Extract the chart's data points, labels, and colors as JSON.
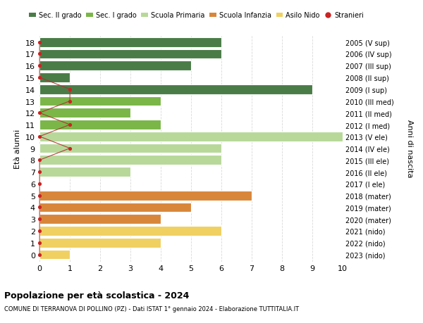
{
  "ages": [
    18,
    17,
    16,
    15,
    14,
    13,
    12,
    11,
    10,
    9,
    8,
    7,
    6,
    5,
    4,
    3,
    2,
    1,
    0
  ],
  "anni_nascita": [
    "2005 (V sup)",
    "2006 (IV sup)",
    "2007 (III sup)",
    "2008 (II sup)",
    "2009 (I sup)",
    "2010 (III med)",
    "2011 (II med)",
    "2012 (I med)",
    "2013 (V ele)",
    "2014 (IV ele)",
    "2015 (III ele)",
    "2016 (II ele)",
    "2017 (I ele)",
    "2018 (mater)",
    "2019 (mater)",
    "2020 (mater)",
    "2021 (nido)",
    "2022 (nido)",
    "2023 (nido)"
  ],
  "bar_values": [
    6,
    6,
    5,
    1,
    9,
    4,
    3,
    4,
    10,
    6,
    6,
    3,
    0,
    7,
    5,
    4,
    6,
    4,
    1
  ],
  "bar_colors": [
    "#4a7c47",
    "#4a7c47",
    "#4a7c47",
    "#4a7c47",
    "#4a7c47",
    "#7ab648",
    "#7ab648",
    "#7ab648",
    "#b8d89a",
    "#b8d89a",
    "#b8d89a",
    "#b8d89a",
    "#b8d89a",
    "#d8873a",
    "#d8873a",
    "#d8873a",
    "#f0d060",
    "#f0d060",
    "#f0d060"
  ],
  "stranieri_values": [
    0,
    0,
    0,
    0,
    1,
    1,
    0,
    1,
    0,
    1,
    0,
    0,
    0,
    0,
    0,
    0,
    0,
    0,
    0
  ],
  "title_bold": "Popolazione per età scolastica - 2024",
  "subtitle": "COMUNE DI TERRANOVA DI POLLINO (PZ) - Dati ISTAT 1° gennaio 2024 - Elaborazione TUTTITALIA.IT",
  "ylabel": "Età alunni",
  "ylabel_right": "Anni di nascita",
  "xlim": [
    0,
    10
  ],
  "xticks": [
    0,
    1,
    2,
    3,
    4,
    5,
    6,
    7,
    8,
    9,
    10
  ],
  "legend_items": [
    {
      "label": "Sec. II grado",
      "color": "#4a7c47"
    },
    {
      "label": "Sec. I grado",
      "color": "#7ab648"
    },
    {
      "label": "Scuola Primaria",
      "color": "#b8d89a"
    },
    {
      "label": "Scuola Infanzia",
      "color": "#d8873a"
    },
    {
      "label": "Asilo Nido",
      "color": "#f0d060"
    },
    {
      "label": "Stranieri",
      "color": "#cc2222"
    }
  ],
  "bg_color": "#ffffff",
  "grid_color": "#d0d0d0",
  "stranieri_color": "#cc2222",
  "stranieri_line_color": "#b03030",
  "bar_edge_color": "#ffffff",
  "bar_height": 0.82
}
